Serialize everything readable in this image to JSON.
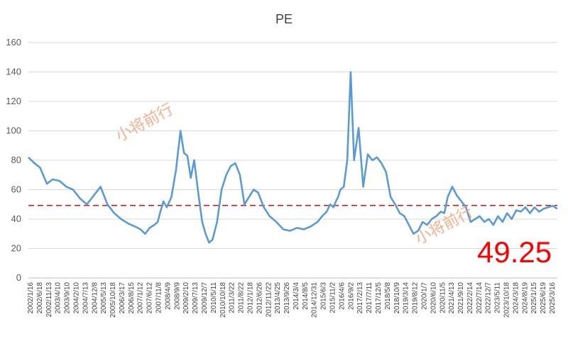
{
  "chart_data": {
    "type": "line",
    "title": "PE",
    "xlabel": "",
    "ylabel": "",
    "ylim": [
      0,
      160
    ],
    "yticks": [
      0,
      20,
      40,
      60,
      80,
      100,
      120,
      140,
      160
    ],
    "grid": "horizontal",
    "legend": "none",
    "x_tick_labels": [
      "2002/1/16",
      "2002/6/18",
      "2002/11/13",
      "2003/4/10",
      "2003/9/10",
      "2004/2/10",
      "2004/7/13",
      "2004/12/8",
      "2005/5/13",
      "2005/10/18",
      "2006/3/17",
      "2006/8/15",
      "2007/1/12",
      "2007/6/12",
      "2007/11/8",
      "2008/4/9",
      "2008/9/9",
      "2009/2/10",
      "2009/7/13",
      "2009/12/7",
      "2010/5/11",
      "2010/10/18",
      "2011/3/22",
      "2011/8/22",
      "2012/1/18",
      "2012/6/26",
      "2012/11/22",
      "2013/4/25",
      "2013/9/26",
      "2014/3/4",
      "2014/8/5",
      "2014/12/31",
      "2015/6/3",
      "2015/11/2",
      "2016/4/6",
      "2016/9/2",
      "2017/2/13",
      "2017/7/11",
      "2017/12/5",
      "2018/5/8",
      "2018/10/9",
      "2019/3/14",
      "2019/8/12",
      "2020/1/7",
      "2020/6/10",
      "2020/11/5",
      "2021/4/13",
      "2021/9/10",
      "2022/2/14",
      "2022/7/14",
      "2022/12/7",
      "2023/5/11",
      "2023/10/18",
      "2024/3/18",
      "2024/8/19",
      "2025/1/15",
      "2025/6/19",
      "2025/3/16"
    ],
    "series": [
      {
        "color": "#5b9bd5",
        "x": [
          2002.04,
          2002.3,
          2002.55,
          2002.85,
          2003.1,
          2003.4,
          2003.7,
          2004.0,
          2004.3,
          2004.6,
          2004.9,
          2005.2,
          2005.5,
          2005.8,
          2006.1,
          2006.4,
          2006.7,
          2006.95,
          2007.15,
          2007.35,
          2007.55,
          2007.7,
          2007.82,
          2007.95,
          2008.1,
          2008.3,
          2008.5,
          2008.7,
          2008.85,
          2009.0,
          2009.15,
          2009.3,
          2009.5,
          2009.65,
          2009.8,
          2009.95,
          2010.1,
          2010.3,
          2010.5,
          2010.7,
          2010.9,
          2011.1,
          2011.3,
          2011.5,
          2011.7,
          2011.9,
          2012.1,
          2012.35,
          2012.6,
          2012.9,
          2013.2,
          2013.5,
          2013.8,
          2014.1,
          2014.4,
          2014.7,
          2014.9,
          2015.1,
          2015.25,
          2015.4,
          2015.5,
          2015.6,
          2015.7,
          2015.85,
          2016.0,
          2016.15,
          2016.3,
          2016.5,
          2016.7,
          2016.9,
          2017.1,
          2017.3,
          2017.5,
          2017.7,
          2017.9,
          2018.1,
          2018.3,
          2018.5,
          2018.7,
          2018.9,
          2019.1,
          2019.3,
          2019.5,
          2019.7,
          2019.9,
          2020.1,
          2020.25,
          2020.4,
          2020.6,
          2020.8,
          2021.0,
          2021.2,
          2021.4,
          2021.6,
          2021.8,
          2022.0,
          2022.2,
          2022.4,
          2022.6,
          2022.8,
          2023.0,
          2023.2,
          2023.4,
          2023.6,
          2023.8,
          2024.0,
          2024.2,
          2024.4,
          2024.6,
          2024.8,
          2025.0,
          2025.2
        ],
        "values": [
          82,
          78,
          75,
          64,
          67,
          66,
          62,
          60,
          54,
          50,
          56,
          62,
          50,
          44,
          40,
          37,
          35,
          33,
          30,
          34,
          36,
          38,
          45,
          52,
          48,
          55,
          73,
          100,
          85,
          83,
          68,
          80,
          55,
          38,
          30,
          24,
          26,
          38,
          60,
          70,
          76,
          78,
          70,
          50,
          55,
          60,
          58,
          48,
          42,
          38,
          33,
          32,
          34,
          33,
          35,
          38,
          42,
          45,
          50,
          48,
          52,
          55,
          60,
          62,
          80,
          140,
          80,
          102,
          62,
          84,
          80,
          82,
          78,
          72,
          55,
          50,
          44,
          42,
          36,
          30,
          32,
          38,
          36,
          40,
          42,
          45,
          44,
          55,
          62,
          56,
          52,
          48,
          38,
          40,
          42,
          38,
          40,
          36,
          42,
          38,
          44,
          40,
          46,
          45,
          48,
          44,
          48,
          45,
          47,
          48,
          49,
          47
        ]
      }
    ],
    "reference_line": {
      "value": 49.25,
      "color": "#e02020",
      "style": "dashed"
    },
    "annotations": {
      "current_value": "49.25",
      "watermark": "小将前行"
    }
  }
}
